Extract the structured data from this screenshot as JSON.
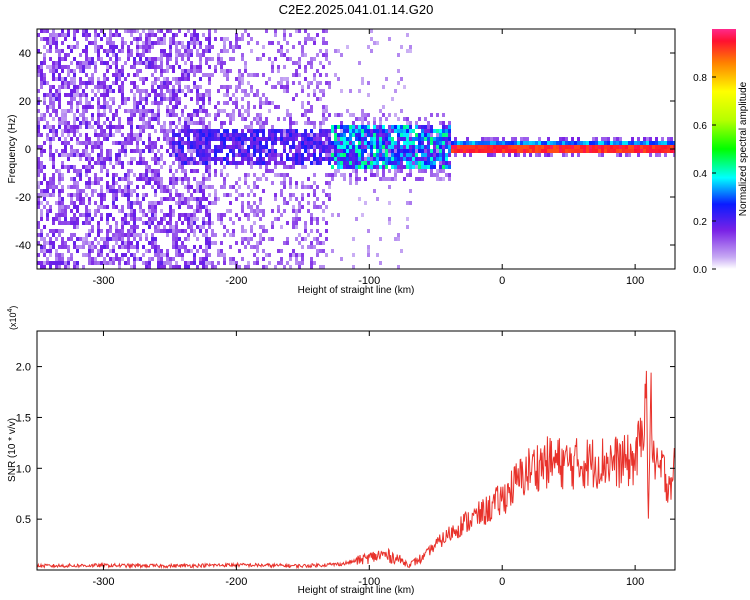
{
  "title": "C2E2.2025.041.01.14.G20",
  "chart_data": [
    {
      "type": "heatmap",
      "xlabel": "Height of straight line (km)",
      "ylabel": "Frequency (Hz)",
      "xlim": [
        -350,
        130
      ],
      "ylim": [
        -50,
        50
      ],
      "xticks": [
        -300,
        -200,
        -100,
        0,
        100
      ],
      "yticks": [
        -40,
        -20,
        0,
        20,
        40
      ],
      "colorbar": {
        "label": "Normalized spectral amplitude",
        "range": [
          0.0,
          1.0
        ],
        "ticks": [
          "0.0",
          "0.2",
          "0.4",
          "0.6",
          "0.8"
        ],
        "tick_values": [
          0.0,
          0.2,
          0.4,
          0.6,
          0.8
        ]
      },
      "features": {
        "noise_region_x": [
          -350,
          -130
        ],
        "signal_center_freq_hz": 1.5,
        "carrier_line_start_x": -40,
        "carrier_line_end_x": 130
      }
    },
    {
      "type": "line",
      "xlabel": "Height of straight line (km)",
      "ylabel": "SNR (10 * v/v)",
      "scale_label": "(x10",
      "scale_exponent": "4",
      "xlim": [
        -350,
        130
      ],
      "ylim": [
        0,
        23500
      ],
      "xticks": [
        -300,
        -200,
        -100,
        0,
        100
      ],
      "yticks": [
        "0.5",
        "1.0",
        "1.5",
        "2.0"
      ],
      "ytick_values": [
        5000,
        10000,
        15000,
        20000
      ],
      "series": [
        {
          "color": "#e8322b",
          "x": [
            -350,
            -300,
            -250,
            -200,
            -150,
            -120,
            -100,
            -90,
            -80,
            -70,
            -60,
            -50,
            -40,
            -30,
            -20,
            -10,
            0,
            10,
            20,
            30,
            40,
            50,
            60,
            70,
            80,
            90,
            100,
            105,
            108,
            110,
            112,
            115,
            120,
            125,
            130
          ],
          "values": [
            400,
            450,
            400,
            500,
            400,
            600,
            1200,
            1500,
            1200,
            500,
            1200,
            2500,
            3500,
            4500,
            5200,
            6000,
            7000,
            8500,
            9800,
            10500,
            10600,
            10400,
            10500,
            10600,
            10700,
            10600,
            10800,
            13000,
            19000,
            6000,
            16000,
            9500,
            10000,
            8500,
            10000
          ]
        }
      ]
    }
  ]
}
